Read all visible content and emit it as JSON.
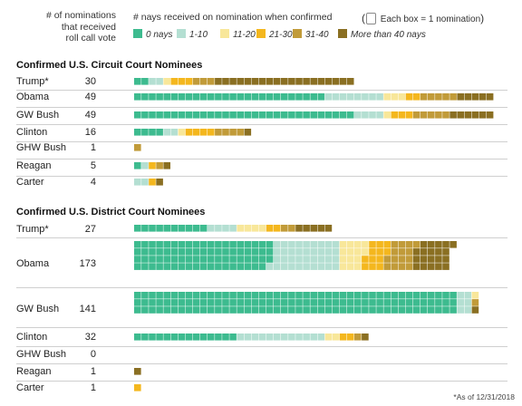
{
  "header": {
    "count_label_lines": [
      "# of nominations",
      "that received",
      "roll call vote"
    ],
    "nays_label": "# nays received on nomination when confirmed",
    "box_note": "Each box = 1 nomination"
  },
  "legend": [
    {
      "label": "0 nays",
      "color": "#3dbb8f"
    },
    {
      "label": "1-10",
      "color": "#b4dfd2"
    },
    {
      "label": "11-20",
      "color": "#f8e79a"
    },
    {
      "label": "21-30",
      "color": "#f4b71e"
    },
    {
      "label": "31-40",
      "color": "#c19b39"
    },
    {
      "label": "More than 40 nays",
      "color": "#8a6f22"
    }
  ],
  "footnote": "*As of 12/31/2018",
  "chart_data": [
    {
      "type": "waffle",
      "title": "Confirmed U.S. Circuit Court Nominees",
      "unit": "Each box = 1 nomination",
      "categories": [
        "0 nays",
        "1-10",
        "11-20",
        "21-30",
        "31-40",
        "More than 40 nays"
      ],
      "rows": [
        {
          "label": "Trump*",
          "total": 30,
          "segments": [
            2,
            2,
            1,
            3,
            3,
            19
          ]
        },
        {
          "label": "Obama",
          "total": 49,
          "segments": [
            26,
            8,
            3,
            2,
            5,
            5
          ]
        },
        {
          "label": "GW Bush",
          "total": 49,
          "segments": [
            30,
            4,
            1,
            3,
            5,
            6
          ]
        },
        {
          "label": "Clinton",
          "total": 16,
          "segments": [
            4,
            2,
            1,
            4,
            4,
            1
          ]
        },
        {
          "label": "GHW Bush",
          "total": 1,
          "segments": [
            0,
            0,
            0,
            0,
            1,
            0
          ]
        },
        {
          "label": "Reagan",
          "total": 5,
          "segments": [
            1,
            1,
            0,
            1,
            1,
            1
          ]
        },
        {
          "label": "Carter",
          "total": 4,
          "segments": [
            0,
            2,
            0,
            1,
            0,
            1
          ]
        }
      ]
    },
    {
      "type": "waffle",
      "title": "Confirmed U.S. District Court Nominees",
      "unit": "Each box = 1 nomination",
      "categories": [
        "0 nays",
        "1-10",
        "11-20",
        "21-30",
        "31-40",
        "More than 40 nays"
      ],
      "rows": [
        {
          "label": "Trump*",
          "total": 27,
          "segments": [
            10,
            4,
            4,
            2,
            2,
            5
          ]
        },
        {
          "label": "Obama",
          "total": 173,
          "segments": [
            75,
            37,
            14,
            12,
            15,
            20
          ]
        },
        {
          "label": "GW Bush",
          "total": 141,
          "segments": [
            132,
            6,
            1,
            0,
            1,
            1
          ]
        },
        {
          "label": "Clinton",
          "total": 32,
          "segments": [
            14,
            12,
            2,
            2,
            1,
            1
          ]
        },
        {
          "label": "GHW Bush",
          "total": 0,
          "segments": [
            0,
            0,
            0,
            0,
            0,
            0
          ]
        },
        {
          "label": "Reagan",
          "total": 1,
          "segments": [
            0,
            0,
            0,
            0,
            0,
            1
          ]
        },
        {
          "label": "Carter",
          "total": 1,
          "segments": [
            0,
            0,
            0,
            1,
            0,
            0
          ]
        }
      ]
    }
  ]
}
